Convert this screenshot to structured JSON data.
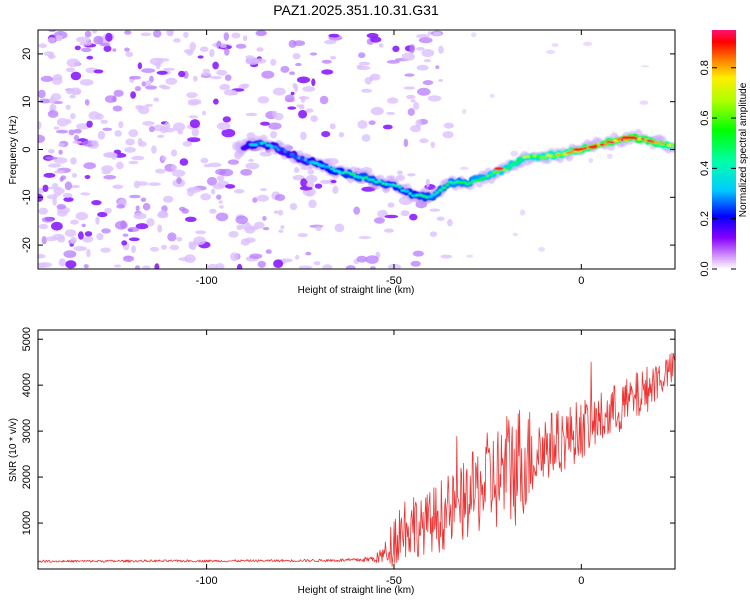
{
  "title": "PAZ1.2025.351.10.31.G31",
  "chart_data": [
    {
      "type": "heatmap",
      "name": "spectrogram",
      "xlabel": "Height of straight line (km)",
      "ylabel": "Frequency (Hz)",
      "xlim": [
        -145,
        25
      ],
      "ylim": [
        -25,
        25
      ],
      "xticks": [
        -100,
        -50,
        0
      ],
      "yticks": [
        -20,
        -10,
        0,
        10,
        20
      ],
      "colorbar": {
        "label": "Normalized spectral amplitude",
        "range": [
          0,
          0.95
        ],
        "ticks": [
          0.0,
          0.2,
          0.4,
          0.6,
          0.8
        ]
      },
      "ridge": {
        "x": [
          -90,
          -85,
          -80,
          -75,
          -70,
          -65,
          -60,
          -55,
          -50,
          -45,
          -40,
          -35,
          -30,
          -25,
          -20,
          -15,
          -10,
          -5,
          0,
          5,
          10,
          15,
          20,
          25
        ],
        "y": [
          0.5,
          1.5,
          0,
          -2,
          -3,
          -4.5,
          -5.5,
          -6.5,
          -7.5,
          -9.5,
          -10,
          -7,
          -7,
          -5.5,
          -4,
          -1.5,
          -1.5,
          -1,
          0,
          1,
          2,
          2.5,
          1.5,
          0.5
        ],
        "amplitude": [
          0.3,
          0.35,
          0.3,
          0.3,
          0.35,
          0.4,
          0.45,
          0.45,
          0.4,
          0.4,
          0.45,
          0.5,
          0.5,
          0.55,
          0.6,
          0.65,
          0.7,
          0.75,
          0.85,
          0.9,
          0.9,
          0.95,
          0.85,
          0.7
        ]
      }
    },
    {
      "type": "line",
      "name": "snr",
      "xlabel": "Height of straight line (km)",
      "ylabel": "SNR (10 * v/v)",
      "xlim": [
        -145,
        25
      ],
      "ylim": [
        0,
        5200
      ],
      "xticks": [
        -100,
        -50,
        0
      ],
      "yticks": [
        1000,
        2000,
        3000,
        4000,
        5000
      ],
      "color": "#ee3333",
      "series": [
        {
          "name": "SNR",
          "x": [
            -145,
            -130,
            -115,
            -100,
            -85,
            -70,
            -60,
            -55,
            -52,
            -50,
            -48,
            -45,
            -43,
            -40,
            -38,
            -35,
            -32,
            -30,
            -28,
            -25,
            -22,
            -20,
            -18,
            -16,
            -14,
            -12,
            -10,
            -7,
            -4,
            0,
            4,
            8,
            12,
            16,
            20,
            25
          ],
          "base": [
            170,
            170,
            175,
            175,
            180,
            185,
            195,
            220,
            350,
            650,
            900,
            1000,
            900,
            1050,
            1150,
            1250,
            1400,
            1550,
            1700,
            1900,
            2000,
            2150,
            2250,
            2350,
            2450,
            2550,
            2650,
            2750,
            2850,
            3050,
            3200,
            3400,
            3600,
            3800,
            4100,
            4400
          ],
          "noise": [
            25,
            25,
            25,
            25,
            25,
            30,
            40,
            80,
            300,
            600,
            700,
            800,
            600,
            700,
            800,
            800,
            850,
            900,
            950,
            1100,
            1200,
            1300,
            1400,
            1300,
            1100,
            900,
            800,
            700,
            700,
            650,
            600,
            600,
            550,
            550,
            450,
            350
          ]
        }
      ]
    }
  ]
}
